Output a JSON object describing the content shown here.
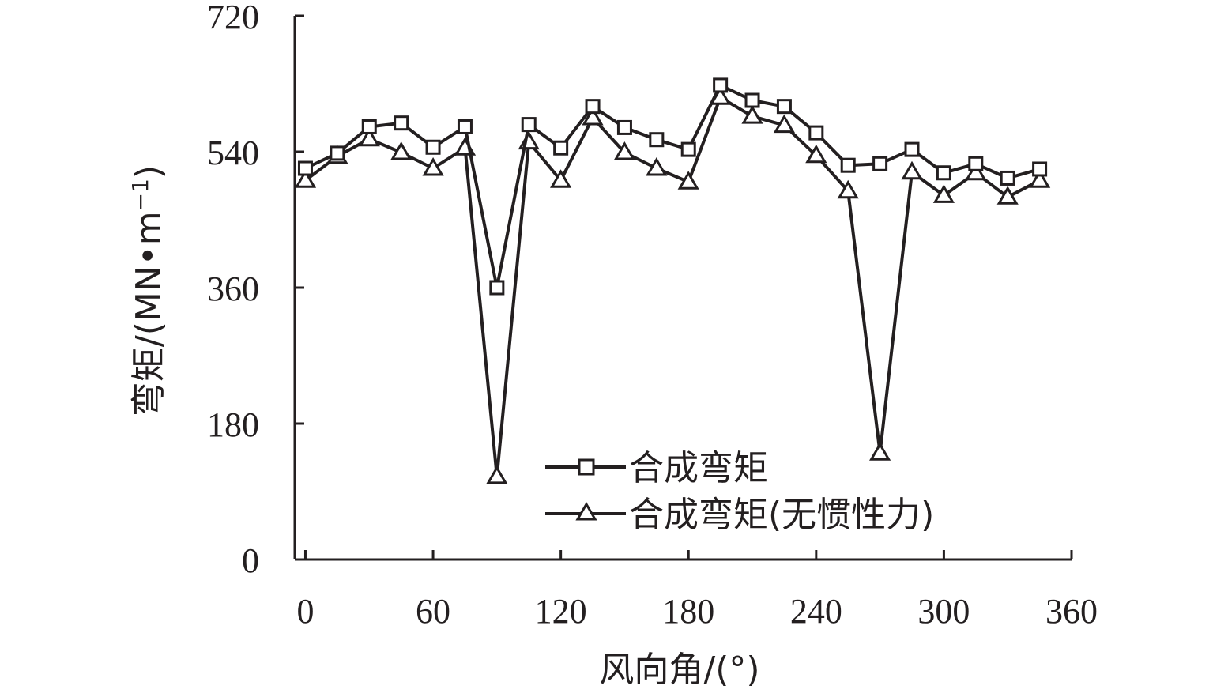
{
  "chart_data": {
    "type": "line",
    "xlabel": "风向角/(°)",
    "ylabel": "弯矩/(MN•m",
    "ylabel_sup": "−1",
    "ylabel_close": ")",
    "xlim": [
      -5,
      360
    ],
    "ylim": [
      0,
      720
    ],
    "xticks": [
      0,
      60,
      120,
      180,
      240,
      300,
      360
    ],
    "yticks": [
      0,
      180,
      360,
      540,
      720
    ],
    "x": [
      0,
      15,
      30,
      45,
      60,
      75,
      90,
      105,
      120,
      135,
      150,
      165,
      180,
      195,
      210,
      225,
      240,
      255,
      270,
      285,
      300,
      315,
      330,
      345
    ],
    "legend_placement": "center-bottom",
    "grid": false,
    "series": [
      {
        "name": "合成弯矩",
        "marker": "square",
        "values": [
          518,
          538,
          573,
          578,
          546,
          573,
          360,
          576,
          545,
          600,
          572,
          556,
          543,
          628,
          608,
          600,
          565,
          522,
          524,
          543,
          512,
          524,
          505,
          517
        ]
      },
      {
        "name": "合成弯矩(无惯性力)",
        "marker": "triangle",
        "values": [
          502,
          534,
          557,
          539,
          518,
          545,
          110,
          553,
          502,
          585,
          539,
          518,
          500,
          612,
          587,
          575,
          535,
          488,
          141,
          513,
          482,
          512,
          480,
          502
        ]
      }
    ]
  }
}
